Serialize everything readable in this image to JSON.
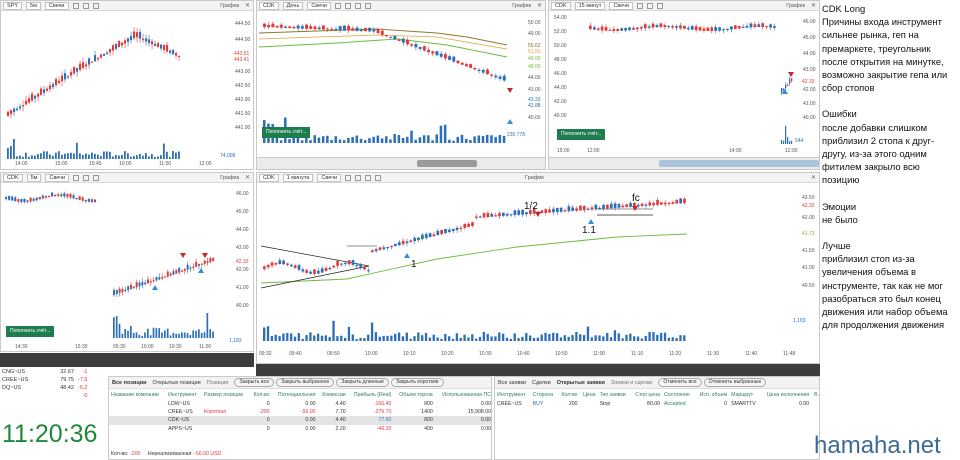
{
  "colors": {
    "up": "#2d6fb7",
    "down": "#e23a3a",
    "ma_green": "#6dbb3c",
    "brand": "#3c6b96",
    "clock": "#1e8a3a"
  },
  "panels": {
    "p1": {
      "symbol": "SPY",
      "interval": "5м",
      "type": "Свечи",
      "graph": "График",
      "prices": [
        "444.50",
        "444.00",
        "443.51",
        "443.41",
        "443.00",
        "442.50",
        "442.00",
        "441.50",
        "441.00"
      ],
      "times": [
        "14:00",
        "15:00",
        "15:45",
        "10:00",
        "11:00",
        "12:00"
      ],
      "volume": "74,008",
      "btn": "Пополнить счёт..."
    },
    "p2": {
      "symbol": "CDK",
      "interval": "День",
      "type": "Свечи",
      "graph": "График",
      "prices": [
        "50.00",
        "49.00",
        "48.00",
        "47.00",
        "46.00",
        "45.00",
        "44.00",
        "43.00",
        "42.00",
        "41.00",
        "40.00"
      ],
      "tags": [
        "55.62",
        "51.50",
        "49.00",
        "48.00",
        "43.33",
        "42.88"
      ],
      "times": [],
      "volume": "230,778",
      "btn": "Пополнить счёт..."
    },
    "p3": {
      "symbol": "CDK",
      "interval": "15 минут",
      "type": "Свечи",
      "graph": "График",
      "prices": [
        "54.00",
        "52.00",
        "50.00",
        "48.00",
        "46.00",
        "44.00",
        "42.00",
        "40.00"
      ],
      "right_prices": [
        "46.00",
        "45.00",
        "44.00",
        "43.00",
        "42.33",
        "42.00",
        "41.00",
        "40.00"
      ],
      "times": [
        "15:00",
        "12:00",
        "14:00",
        "12:00"
      ],
      "volume": "544",
      "btn": "Пополнить счёт..."
    },
    "p4": {
      "symbol": "CDK",
      "interval": "5м",
      "type": "Свечи",
      "graph": "График",
      "prices": [
        "46.00",
        "45.00",
        "44.00",
        "43.00",
        "42.33",
        "42.00",
        "41.00",
        "40.00"
      ],
      "times": [
        "14:30",
        "15:30",
        "09:30",
        "10:00",
        "10:30",
        "11:00"
      ],
      "volume": "1,183",
      "btn": "Пополнить счёт..."
    },
    "p5": {
      "symbol": "CDK",
      "interval": "1 минута",
      "type": "Свечи",
      "graph": "График",
      "prices": [
        "43.50",
        "43.00",
        "42.33",
        "42.00",
        "41.73",
        "41.50",
        "41.00",
        "40.50"
      ],
      "times": [
        "09:32",
        "09:40",
        "09:50",
        "10:00",
        "10:10",
        "10:20",
        "10:30",
        "10:40",
        "10:50",
        "11:00",
        "11:10",
        "11:20",
        "11:30",
        "11:40",
        "11:48"
      ],
      "volume": "1,183",
      "btn": "Пополнить счёт...",
      "annotations": {
        "a1": "1",
        "a12": "1/2",
        "a11": "1.1",
        "fc": "fc"
      }
    }
  },
  "watchlist": [
    {
      "sym": "CNG~US",
      "last": "32.67",
      "chg": "-1"
    },
    {
      "sym": "CREE~US",
      "last": "79.75",
      "chg": "-7.5"
    },
    {
      "sym": "DQ~US",
      "last": "48.42",
      "chg": "-6.2"
    },
    {
      "sym": "",
      "last": "",
      "chg": "-0"
    }
  ],
  "clock": "11:20:36",
  "positions": {
    "tabs": [
      "Все позиции",
      "Открытые позиции",
      "Позиции"
    ],
    "buttons": [
      "Закрыть все",
      "Закрыть выбранное",
      "Закрыть длинные",
      "Закрыть короткие"
    ],
    "headers": [
      "Название компании",
      "Инструмент",
      "Размер позиции",
      "Кол-во",
      "Потенциальная",
      "Комиссии",
      "Прибыль (Real)",
      "Объем торгов",
      "Использованная ПС"
    ],
    "rows": [
      {
        "inst": "LDW~US",
        "side": "",
        "qty": "0",
        "pot": "0.00",
        "fee": "4.40",
        "pnl": "-166.40",
        "vol": "800",
        "used": "0.00"
      },
      {
        "inst": "CREE~US",
        "side": "Короткая",
        "qty": "-200",
        "pot": "-56.00",
        "fee": "7.70",
        "pnl": "-279.70",
        "vol": "1400",
        "used": "15,908.00"
      },
      {
        "inst": "CDK~US",
        "side": "",
        "qty": "0",
        "pot": "0.00",
        "fee": "4.40",
        "pnl": "77.60",
        "vol": "800",
        "used": "0.00"
      },
      {
        "inst": "APPS~US",
        "side": "",
        "qty": "0",
        "pot": "0.00",
        "fee": "2.20",
        "pnl": "-46.20",
        "vol": "400",
        "used": "0.00"
      }
    ],
    "footer_qty_label": "Кол-во:",
    "footer_qty": "-200",
    "footer_unreal_label": "Нереализованная:",
    "footer_unreal": "-56.00 USD"
  },
  "orders": {
    "tabs": [
      "Все заявки",
      "Сделки",
      "Открытые заявки"
    ],
    "title": "Заявки и сделки",
    "buttons": [
      "Отменить все",
      "Отменить выбранные"
    ],
    "headers": [
      "Инструмент",
      "Сторона",
      "Кол-во",
      "Цена",
      "Тип заявки",
      "Стоп цена",
      "Состояние",
      "Исп. объем",
      "Маршрут",
      "Цена исполнения",
      "В."
    ],
    "rows": [
      {
        "inst": "CREE~US",
        "side": "BUY",
        "qty": "200",
        "price": "",
        "type": "Stop",
        "stop": "80.00",
        "state": "Accepted",
        "filled": "0",
        "route": "SMARTTV",
        "exec": "0.00"
      }
    ]
  },
  "notes": {
    "title": "CDK Long",
    "entry": "Причины входа инструмент сильнее рынка, геп на премаркете, треугольник после открытия на минутке, возможно закрытие гепа или сбор стопов",
    "errors_title": "Ошибки",
    "errors": "после добавки слишком приблизил 2 стопа к друг-другу, из-за этого одним фитилем закрыло всю позицию",
    "emotions_title": "Эмоции",
    "emotions": "не было",
    "better_title": "Лучше",
    "better": "приблизил стоп из-за увеличения объема в инструменте, так как не мог разобраться это был конец движения или набор объема для продолжения движения"
  },
  "brand": "hamaha.net"
}
